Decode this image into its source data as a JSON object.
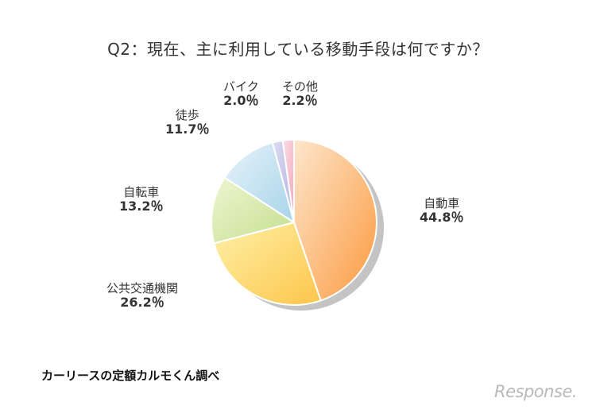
{
  "chart_data": {
    "type": "pie",
    "title": "Q2：現在、主に利用している移動手段は何ですか？",
    "categories": [
      "自動車",
      "公共交通機関",
      "自転車",
      "徒歩",
      "バイク",
      "その他"
    ],
    "values": [
      44.8,
      26.2,
      13.2,
      11.7,
      2.0,
      2.2
    ],
    "value_labels": [
      "44.8％",
      "26.2％",
      "13.2％",
      "11.7％",
      "2.0％",
      "2.2％"
    ],
    "start": "top, clockwise",
    "legend": "none (labels placed around the pie)",
    "colors": [
      [
        "#fde6cc",
        "#fb9a3e"
      ],
      [
        "#fff0a8",
        "#fcc64a"
      ],
      [
        "#eef6d2",
        "#c4de8e"
      ],
      [
        "#e6f3f9",
        "#a8d4ea"
      ],
      [
        "#dcdcf2",
        "#b2b2e0"
      ],
      [
        "#fbdde6",
        "#f2a6bc"
      ]
    ],
    "shadow_color": "#c4c4c4"
  },
  "source": "カーリースの定額カルモくん調べ",
  "logo_text": "Response."
}
